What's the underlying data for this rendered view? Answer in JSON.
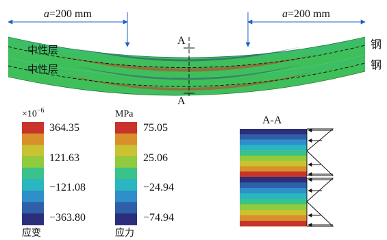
{
  "dimension": {
    "var": "a",
    "value": "=200 mm"
  },
  "section_label": "A",
  "section_title": "A-A",
  "neutral_layer": "中性层",
  "steel": "钢",
  "strain_legend": {
    "unit_prefix": "×10",
    "unit_exp": "−6",
    "values": [
      "364.35",
      "121.63",
      "−121.08",
      "−363.80"
    ],
    "caption": "应变"
  },
  "stress_legend": {
    "unit": "MPa",
    "values": [
      "75.05",
      "25.06",
      "−24.94",
      "−74.94"
    ],
    "caption": "应力"
  },
  "colors": {
    "scale": [
      "#2b2e7a",
      "#2f5fa8",
      "#2f8fc8",
      "#29b6c0",
      "#39c28a",
      "#8fcb3c",
      "#c9c232",
      "#d9902a",
      "#c8342c"
    ],
    "beam_green": "#3fbf5a",
    "dim_blue": "#1f5fc4"
  }
}
